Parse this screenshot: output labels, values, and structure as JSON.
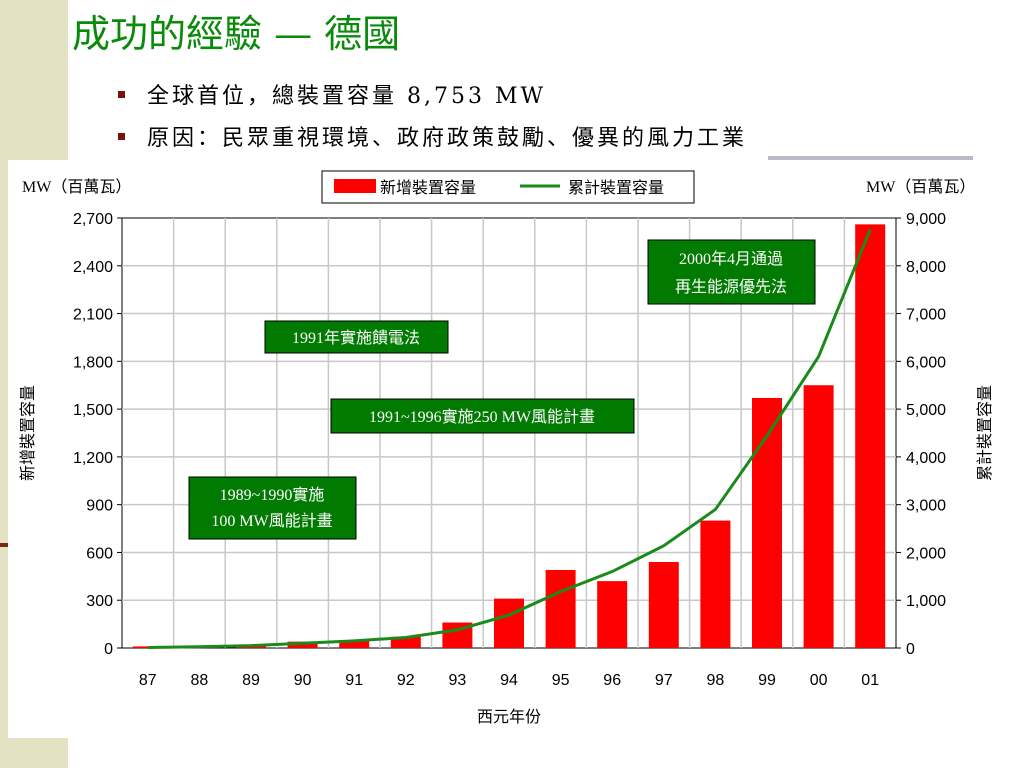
{
  "slide": {
    "title": "成功的經驗 — 德國",
    "bullets": [
      "全球首位，總裝置容量 8,753 MW",
      "原因：民眾重視環境、政府政策鼓勵、優異的風力工業"
    ]
  },
  "colors": {
    "title": "#0a8a0a",
    "bar": "#ff0000",
    "line": "#1a8a1a",
    "annotation_bg": "#007a00",
    "annotation_text": "#ffffff",
    "sidebar": "#e4e2c2",
    "plot_bg": "#ffffff",
    "grid": "#c8c8c8"
  },
  "chart_data": {
    "type": "bar",
    "categories": [
      "87",
      "88",
      "89",
      "90",
      "91",
      "92",
      "93",
      "94",
      "95",
      "96",
      "97",
      "98",
      "99",
      "00",
      "01"
    ],
    "series": [
      {
        "name": "新增裝置容量",
        "type": "bar",
        "axis": "left",
        "values": [
          10,
          15,
          20,
          40,
          50,
          70,
          160,
          310,
          490,
          420,
          540,
          800,
          1570,
          1650,
          2660
        ]
      },
      {
        "name": "累計裝置容量",
        "type": "line",
        "axis": "right",
        "values": [
          10,
          25,
          50,
          100,
          150,
          220,
          380,
          690,
          1180,
          1600,
          2140,
          2900,
          4440,
          6100,
          8760
        ]
      }
    ],
    "xlabel": "西元年份",
    "ylabel_left": "新增裝置容量",
    "ylabel_right": "累計裝置容量",
    "unit_left": "MW（百萬瓦）",
    "unit_right": "MW（百萬瓦）",
    "ylim_left": [
      0,
      2700
    ],
    "ylim_right": [
      0,
      9000
    ],
    "yticks_left": [
      "0",
      "300",
      "600",
      "900",
      "1,200",
      "1,500",
      "1,800",
      "2,100",
      "2,400",
      "2,700"
    ],
    "yticks_right": [
      "0",
      "1,000",
      "2,000",
      "3,000",
      "4,000",
      "5,000",
      "6,000",
      "7,000",
      "8,000",
      "9,000"
    ],
    "grid": true,
    "legend_position": "top-center",
    "annotations": [
      {
        "lines": [
          "1989~1990實施",
          "100 MW風能計畫"
        ]
      },
      {
        "lines": [
          "1991年實施饋電法"
        ]
      },
      {
        "lines": [
          "1991~1996實施250 MW風能計畫"
        ]
      },
      {
        "lines": [
          "2000年4月通過",
          "再生能源優先法"
        ]
      }
    ]
  }
}
